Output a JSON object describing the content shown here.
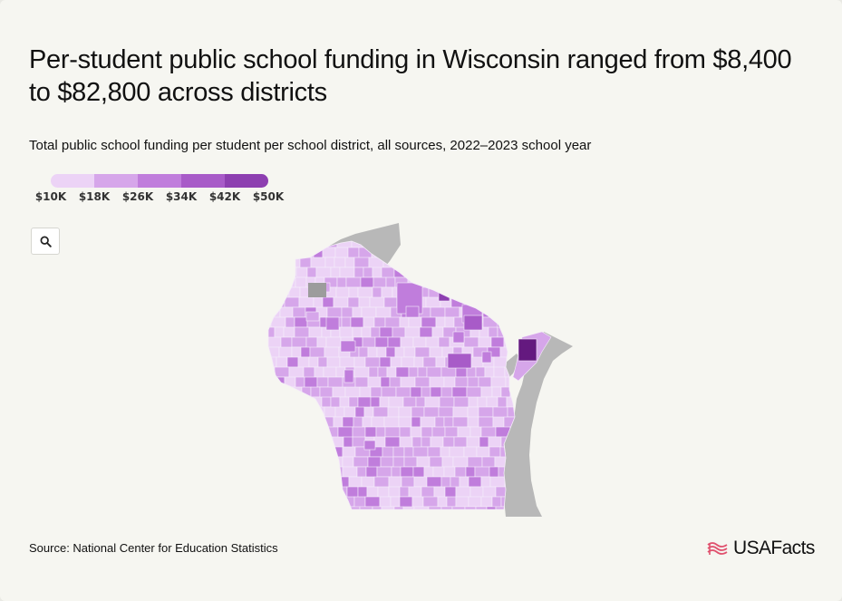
{
  "title": "Per-student public school funding in Wisconsin ranged from $8,400 to $82,800 across districts",
  "subtitle": "Total public school funding per student per school district, all sources, 2022–2023 school year",
  "legend": {
    "labels": [
      "$10K",
      "$18K",
      "$26K",
      "$34K",
      "$42K",
      "$50K"
    ],
    "colors": [
      "#ecd3f6",
      "#d6a6ea",
      "#c07ddc",
      "#a85bc8",
      "#8d3fb0",
      "#64197f"
    ]
  },
  "map": {
    "lake_color": "#b8b8b8",
    "no_data_color": "#9c9c9c",
    "icons": {
      "zoom": "magnifier-icon"
    }
  },
  "source": "Source: National Center for Education Statistics",
  "brand": {
    "name": "USAFacts",
    "color": "#e0516e"
  }
}
